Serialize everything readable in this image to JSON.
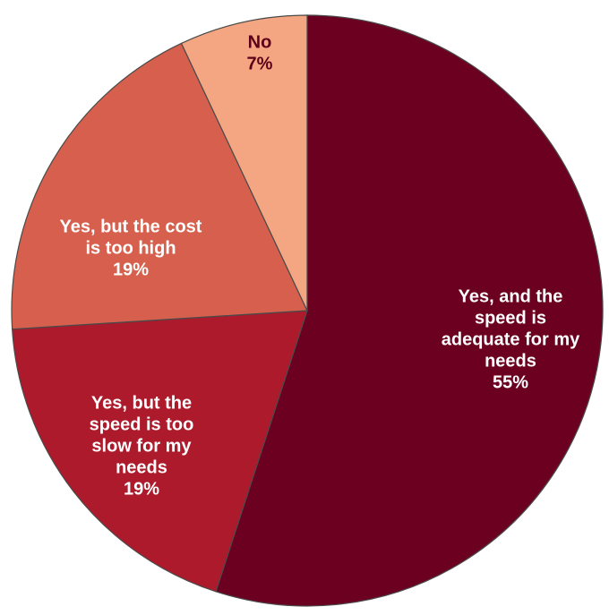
{
  "chart_data": {
    "type": "pie",
    "title": "",
    "start_angle_deg": 0,
    "direction": "clockwise",
    "legend": "none",
    "slices": [
      {
        "label": "Yes, and the speed is adequate for my needs",
        "value": 55,
        "value_label": "55%",
        "color": "#6b0020",
        "text_color": "#ffffff",
        "label_lines": [
          "Yes, and the",
          "speed is",
          "adequate for my",
          "needs"
        ]
      },
      {
        "label": "Yes, but the speed is too slow for my needs",
        "value": 19,
        "value_label": "19%",
        "color": "#ad1a2c",
        "text_color": "#ffffff",
        "label_lines": [
          "Yes, but the",
          "speed is too",
          "slow for my",
          "needs"
        ]
      },
      {
        "label": "Yes, but the cost is too high",
        "value": 19,
        "value_label": "19%",
        "color": "#d6604d",
        "text_color": "#ffffff",
        "label_lines": [
          "Yes, but the cost",
          "is too high"
        ]
      },
      {
        "label": "No",
        "value": 7,
        "value_label": "7%",
        "color": "#f4a582",
        "text_color": "#5b0018",
        "label_lines": [
          "No"
        ]
      }
    ]
  }
}
